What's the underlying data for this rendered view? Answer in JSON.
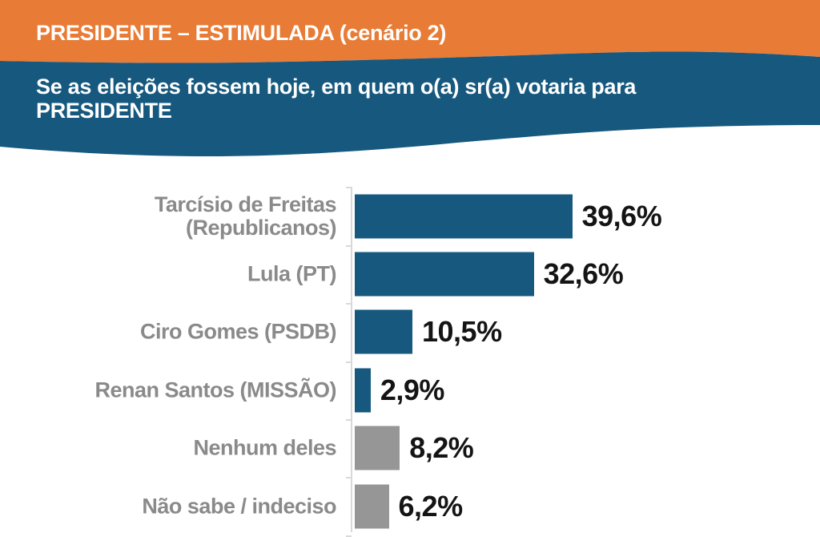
{
  "header": {
    "kicker": "PRESIDENTE – ESTIMULADA (cenário 2)",
    "question_line1": "Se as eleições fossem hoje, em quem o(a) sr(a) votaria para",
    "question_line2": "PRESIDENTE"
  },
  "colors": {
    "orange_band": "#E87B35",
    "blue_band": "#16587E",
    "blue_bar": "#16587E",
    "gray_bar": "#969696",
    "label_gray": "#8A8A8A",
    "value_black": "#141414",
    "axis_gray": "#D9D9D9"
  },
  "chart_data": {
    "type": "bar",
    "orientation": "horizontal",
    "title": "PRESIDENTE – ESTIMULADA (cenário 2)",
    "subtitle": "Se as eleições fossem hoje, em quem o(a) sr(a) votaria para PRESIDENTE",
    "categories": [
      "Tarcísio de Freitas\n(Republicanos)",
      "Lula (PT)",
      "Ciro Gomes (PSDB)",
      "Renan Santos (MISSÃO)",
      "Nenhum deles",
      "Não sabe / indeciso"
    ],
    "values": [
      39.6,
      32.6,
      10.5,
      2.9,
      8.2,
      6.2
    ],
    "value_labels": [
      "39,6%",
      "32,6%",
      "10,5%",
      "2,9%",
      "8,2%",
      "6,2%"
    ],
    "bar_color_keys": [
      "blue_bar",
      "blue_bar",
      "blue_bar",
      "blue_bar",
      "gray_bar",
      "gray_bar"
    ],
    "xlim": [
      0,
      42
    ],
    "grid": false,
    "legend": false,
    "value_label_position": "right-of-bar",
    "category_label_position": "left-of-axis"
  }
}
